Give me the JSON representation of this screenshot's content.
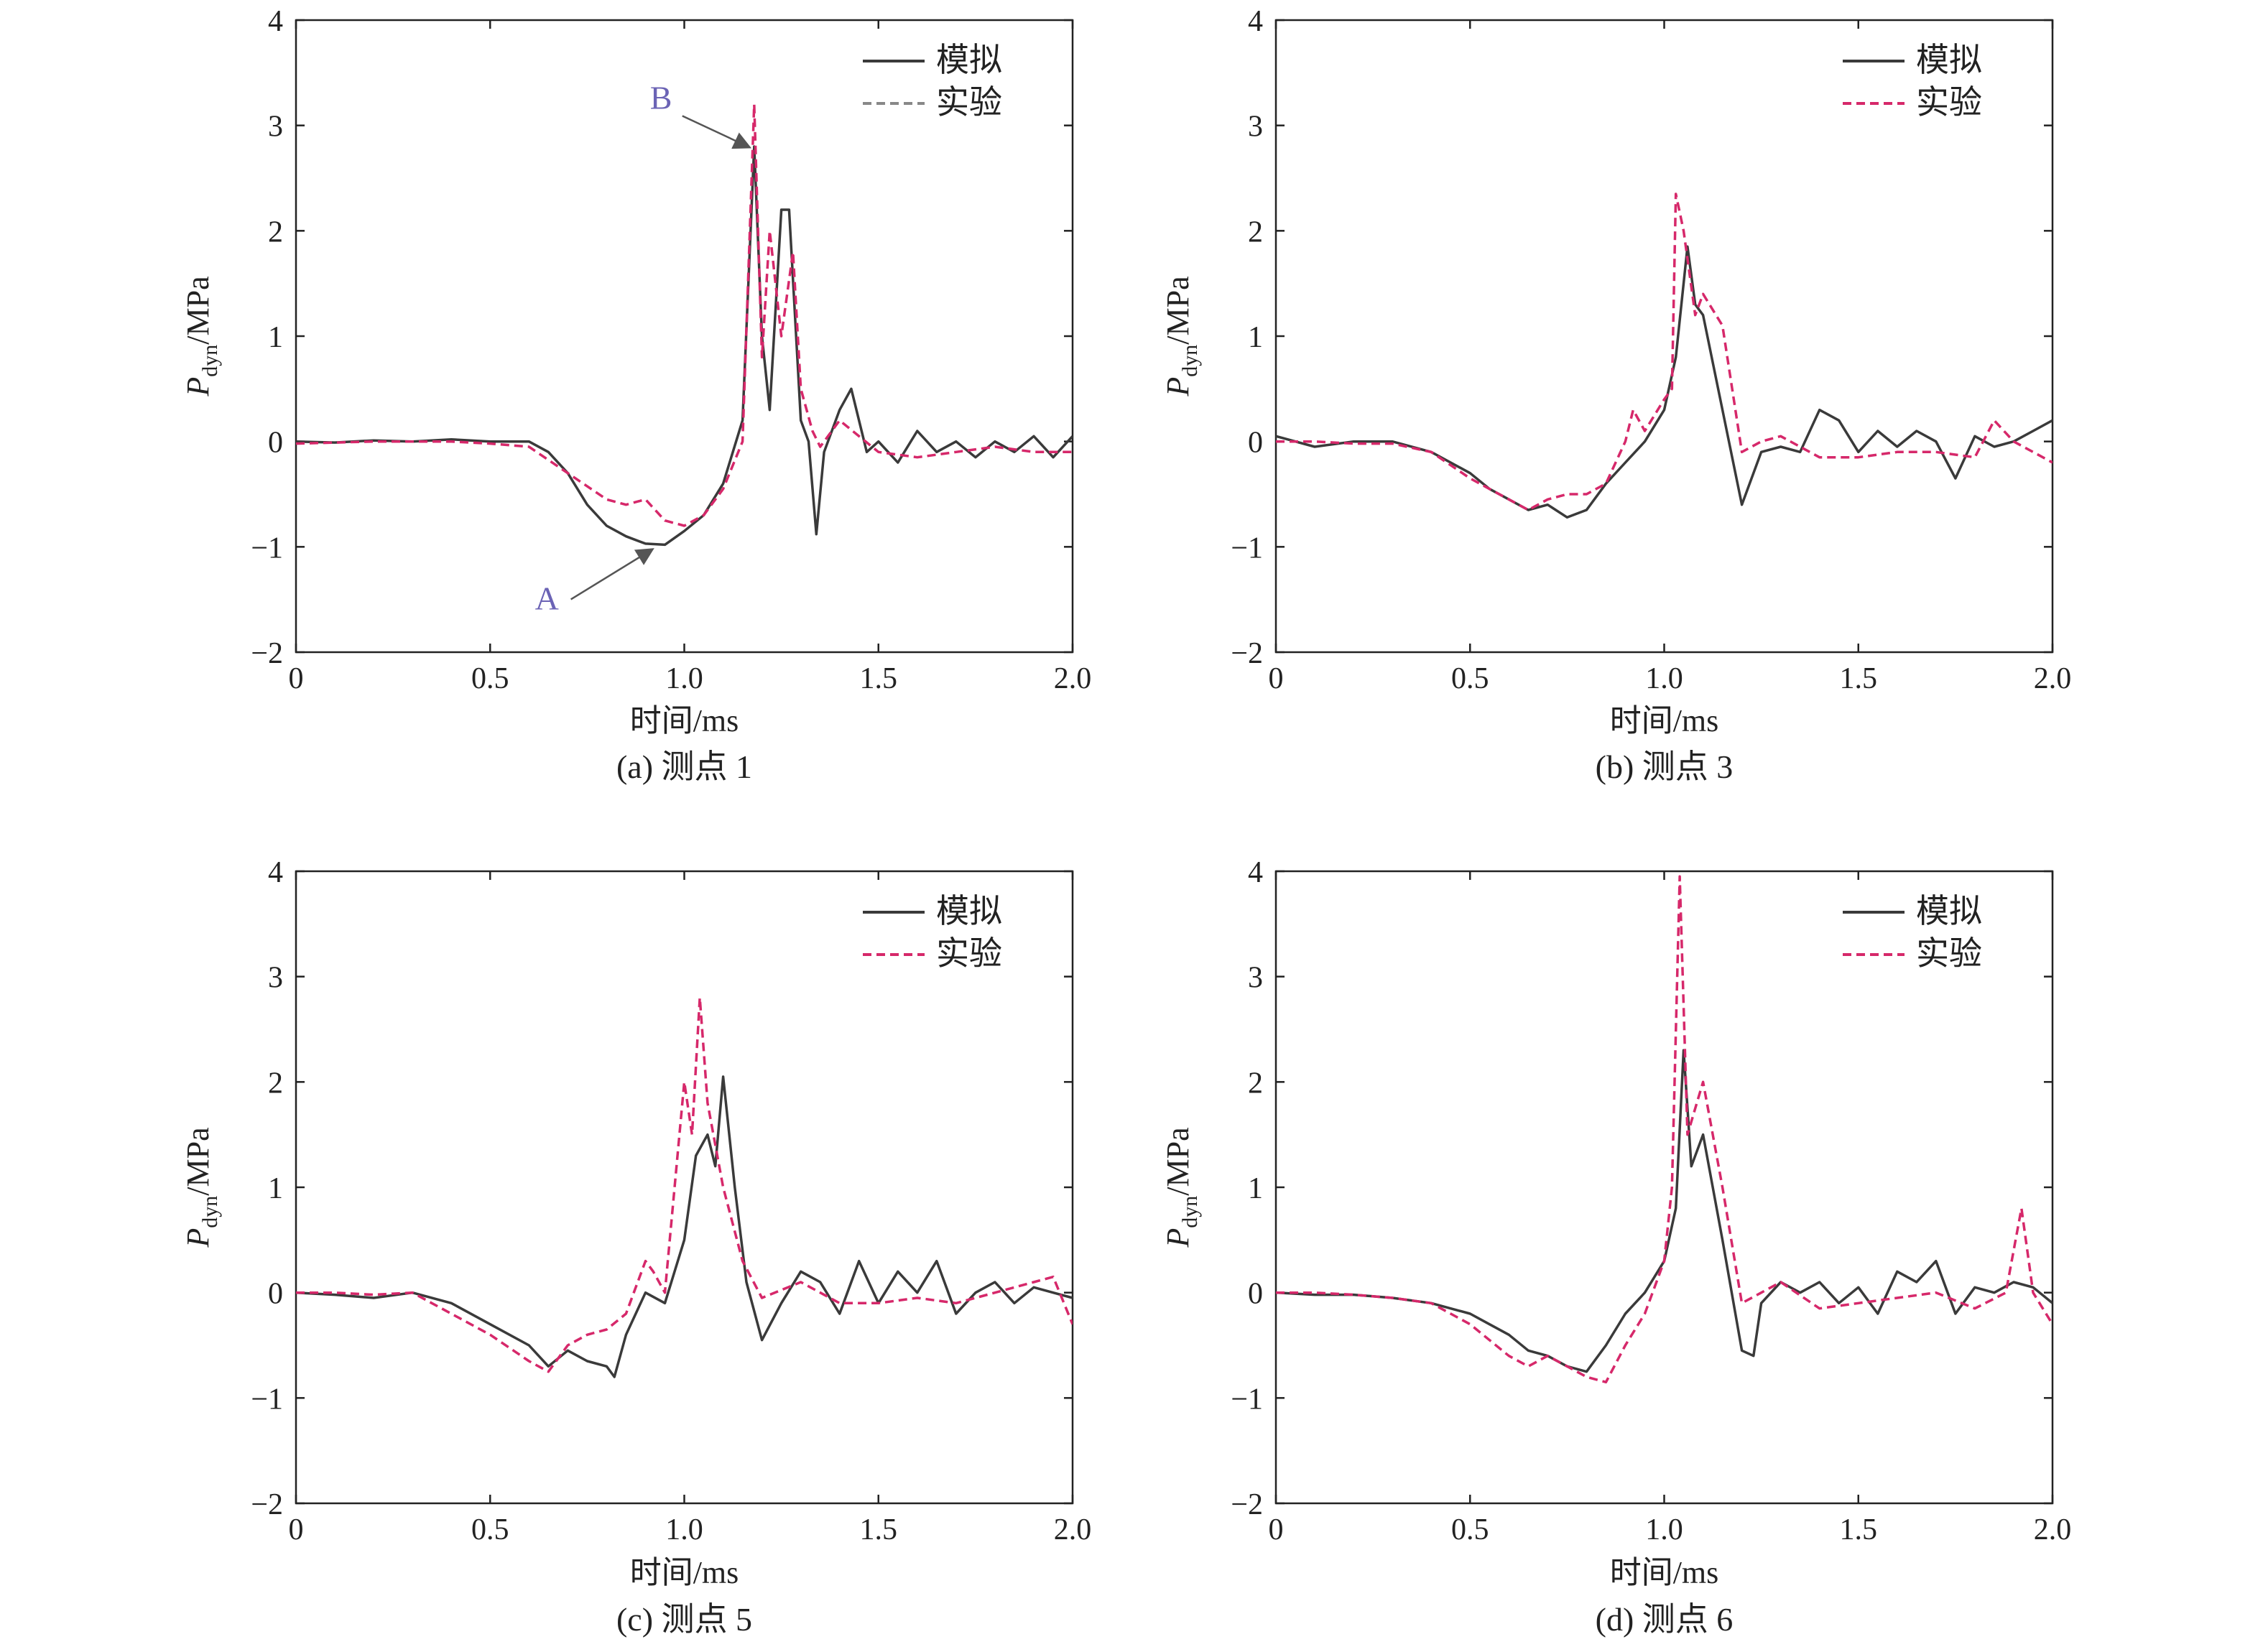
{
  "figure": {
    "colors": {
      "sim": "#3a3a3a",
      "exp": "#d6286a",
      "annotation": "#6b63b5"
    }
  },
  "chart_data": [
    {
      "type": "line",
      "caption": "(a) 测点 1",
      "xlabel": "时间/ms",
      "ylabel": {
        "main": "P",
        "sub": "dyn",
        "rest": "/MPa"
      },
      "xlim": [
        0,
        2.0
      ],
      "ylim": [
        -2,
        4
      ],
      "xticks": [
        "0",
        "0.5",
        "1.0",
        "1.5",
        "2.0"
      ],
      "yticks": [
        "−2",
        "−1",
        "0",
        "1",
        "2",
        "3",
        "4"
      ],
      "legend": {
        "position": "top-right",
        "sim_label": "模拟",
        "exp_label": "实验"
      },
      "annotations": [
        {
          "label": "A",
          "x": 0.93,
          "y": -0.98
        },
        {
          "label": "B",
          "x": 1.18,
          "y": 2.75
        }
      ],
      "series": [
        {
          "name": "模拟",
          "style": "solid",
          "x": [
            0,
            0.1,
            0.2,
            0.3,
            0.4,
            0.5,
            0.6,
            0.65,
            0.7,
            0.75,
            0.8,
            0.85,
            0.9,
            0.95,
            1.0,
            1.05,
            1.1,
            1.15,
            1.18,
            1.2,
            1.22,
            1.25,
            1.27,
            1.3,
            1.32,
            1.34,
            1.36,
            1.4,
            1.43,
            1.47,
            1.5,
            1.55,
            1.6,
            1.65,
            1.7,
            1.75,
            1.8,
            1.85,
            1.9,
            1.95,
            2.0
          ],
          "y": [
            0,
            -0.01,
            0.01,
            0,
            0.02,
            0,
            0,
            -0.1,
            -0.3,
            -0.6,
            -0.8,
            -0.9,
            -0.97,
            -0.98,
            -0.85,
            -0.7,
            -0.4,
            0.2,
            2.8,
            1.0,
            0.3,
            2.2,
            2.2,
            0.2,
            0.0,
            -0.88,
            -0.1,
            0.3,
            0.5,
            -0.1,
            0.0,
            -0.2,
            0.1,
            -0.1,
            0.0,
            -0.15,
            0.0,
            -0.1,
            0.05,
            -0.15,
            0.05
          ]
        },
        {
          "name": "实验",
          "style": "dashed",
          "x": [
            0,
            0.2,
            0.4,
            0.5,
            0.6,
            0.7,
            0.8,
            0.85,
            0.9,
            0.95,
            1.0,
            1.05,
            1.1,
            1.15,
            1.18,
            1.2,
            1.22,
            1.25,
            1.28,
            1.3,
            1.33,
            1.35,
            1.4,
            1.5,
            1.6,
            1.7,
            1.8,
            1.9,
            2.0
          ],
          "y": [
            -0.02,
            0,
            0,
            -0.02,
            -0.05,
            -0.3,
            -0.55,
            -0.6,
            -0.55,
            -0.75,
            -0.8,
            -0.7,
            -0.45,
            0.0,
            3.2,
            0.8,
            2.0,
            1.0,
            1.8,
            0.5,
            0.1,
            -0.05,
            0.2,
            -0.1,
            -0.15,
            -0.1,
            -0.05,
            -0.1,
            -0.1
          ]
        }
      ]
    },
    {
      "type": "line",
      "caption": "(b) 测点 3",
      "xlabel": "时间/ms",
      "ylabel": {
        "main": "P",
        "sub": "dyn",
        "rest": "/MPa"
      },
      "xlim": [
        0,
        2.0
      ],
      "ylim": [
        -2,
        4
      ],
      "xticks": [
        "0",
        "0.5",
        "1.0",
        "1.5",
        "2.0"
      ],
      "yticks": [
        "−2",
        "−1",
        "0",
        "1",
        "2",
        "3",
        "4"
      ],
      "legend": {
        "position": "top-right",
        "sim_label": "模拟",
        "exp_label": "实验"
      },
      "series": [
        {
          "name": "模拟",
          "style": "solid",
          "x": [
            0,
            0.1,
            0.2,
            0.3,
            0.4,
            0.5,
            0.55,
            0.6,
            0.65,
            0.7,
            0.75,
            0.8,
            0.85,
            0.9,
            0.95,
            1.0,
            1.03,
            1.06,
            1.08,
            1.1,
            1.15,
            1.2,
            1.25,
            1.3,
            1.35,
            1.4,
            1.45,
            1.5,
            1.55,
            1.6,
            1.65,
            1.7,
            1.75,
            1.8,
            1.85,
            1.9,
            1.95,
            2.0
          ],
          "y": [
            0.05,
            -0.05,
            0,
            0,
            -0.1,
            -0.3,
            -0.45,
            -0.55,
            -0.65,
            -0.6,
            -0.72,
            -0.65,
            -0.4,
            -0.2,
            0.0,
            0.3,
            0.8,
            1.85,
            1.3,
            1.2,
            0.3,
            -0.6,
            -0.1,
            -0.05,
            -0.1,
            0.3,
            0.2,
            -0.1,
            0.1,
            -0.05,
            0.1,
            0.0,
            -0.35,
            0.05,
            -0.05,
            0.0,
            0.1,
            0.2
          ]
        },
        {
          "name": "实验",
          "style": "dashed",
          "x": [
            0,
            0.1,
            0.2,
            0.3,
            0.4,
            0.5,
            0.6,
            0.65,
            0.7,
            0.75,
            0.8,
            0.85,
            0.9,
            0.92,
            0.95,
            1.0,
            1.02,
            1.03,
            1.05,
            1.08,
            1.1,
            1.15,
            1.2,
            1.25,
            1.3,
            1.4,
            1.5,
            1.6,
            1.7,
            1.8,
            1.85,
            1.9,
            1.95,
            2.0
          ],
          "y": [
            0,
            0,
            -0.02,
            -0.02,
            -0.1,
            -0.35,
            -0.55,
            -0.65,
            -0.55,
            -0.5,
            -0.5,
            -0.4,
            0.0,
            0.3,
            0.1,
            0.4,
            0.5,
            2.35,
            2.0,
            1.2,
            1.4,
            1.1,
            -0.1,
            0.0,
            0.05,
            -0.15,
            -0.15,
            -0.1,
            -0.1,
            -0.15,
            0.2,
            0.0,
            -0.1,
            -0.2
          ]
        }
      ]
    },
    {
      "type": "line",
      "caption": "(c) 测点 5",
      "xlabel": "时间/ms",
      "ylabel": {
        "main": "P",
        "sub": "dyn",
        "rest": "/MPa"
      },
      "xlim": [
        0,
        2.0
      ],
      "ylim": [
        -2,
        4
      ],
      "xticks": [
        "0",
        "0.5",
        "1.0",
        "1.5",
        "2.0"
      ],
      "yticks": [
        "−2",
        "−1",
        "0",
        "1",
        "2",
        "3",
        "4"
      ],
      "legend": {
        "position": "top-right",
        "sim_label": "模拟",
        "exp_label": "实验"
      },
      "series": [
        {
          "name": "模拟",
          "style": "solid",
          "x": [
            0,
            0.1,
            0.2,
            0.3,
            0.4,
            0.5,
            0.6,
            0.65,
            0.7,
            0.75,
            0.8,
            0.82,
            0.85,
            0.9,
            0.95,
            1.0,
            1.03,
            1.06,
            1.08,
            1.1,
            1.13,
            1.16,
            1.2,
            1.25,
            1.3,
            1.35,
            1.4,
            1.45,
            1.5,
            1.55,
            1.6,
            1.65,
            1.7,
            1.75,
            1.8,
            1.85,
            1.9,
            1.95,
            2.0
          ],
          "y": [
            0,
            -0.02,
            -0.05,
            0.0,
            -0.1,
            -0.3,
            -0.5,
            -0.7,
            -0.55,
            -0.65,
            -0.7,
            -0.8,
            -0.4,
            0.0,
            -0.1,
            0.5,
            1.3,
            1.5,
            1.2,
            2.05,
            1.0,
            0.1,
            -0.45,
            -0.1,
            0.2,
            0.1,
            -0.2,
            0.3,
            -0.1,
            0.2,
            0.0,
            0.3,
            -0.2,
            0.0,
            0.1,
            -0.1,
            0.05,
            0.0,
            -0.05
          ]
        },
        {
          "name": "实验",
          "style": "dashed",
          "x": [
            0,
            0.1,
            0.2,
            0.3,
            0.4,
            0.5,
            0.6,
            0.65,
            0.7,
            0.75,
            0.8,
            0.85,
            0.9,
            0.92,
            0.95,
            1.0,
            1.02,
            1.04,
            1.06,
            1.1,
            1.15,
            1.2,
            1.3,
            1.4,
            1.5,
            1.6,
            1.7,
            1.8,
            1.9,
            1.95,
            2.0
          ],
          "y": [
            0,
            0,
            -0.02,
            0,
            -0.2,
            -0.4,
            -0.65,
            -0.75,
            -0.5,
            -0.4,
            -0.35,
            -0.2,
            0.3,
            0.2,
            0.0,
            2.0,
            1.5,
            2.8,
            1.8,
            1.0,
            0.3,
            -0.05,
            0.1,
            -0.1,
            -0.1,
            -0.05,
            -0.1,
            0.0,
            0.1,
            0.15,
            -0.3
          ]
        }
      ]
    },
    {
      "type": "line",
      "caption": "(d) 测点 6",
      "xlabel": "时间/ms",
      "ylabel": {
        "main": "P",
        "sub": "dyn",
        "rest": "/MPa"
      },
      "xlim": [
        0,
        2.0
      ],
      "ylim": [
        -2,
        4
      ],
      "xticks": [
        "0",
        "0.5",
        "1.0",
        "1.5",
        "2.0"
      ],
      "yticks": [
        "−2",
        "−1",
        "0",
        "1",
        "2",
        "3",
        "4"
      ],
      "legend": {
        "position": "top-right",
        "sim_label": "模拟",
        "exp_label": "实验"
      },
      "series": [
        {
          "name": "模拟",
          "style": "solid",
          "x": [
            0,
            0.1,
            0.2,
            0.3,
            0.4,
            0.5,
            0.55,
            0.6,
            0.65,
            0.7,
            0.75,
            0.8,
            0.85,
            0.9,
            0.95,
            1.0,
            1.03,
            1.05,
            1.07,
            1.1,
            1.15,
            1.2,
            1.23,
            1.25,
            1.3,
            1.35,
            1.4,
            1.45,
            1.5,
            1.55,
            1.6,
            1.65,
            1.7,
            1.75,
            1.8,
            1.85,
            1.9,
            1.95,
            2.0
          ],
          "y": [
            0,
            -0.02,
            -0.02,
            -0.05,
            -0.1,
            -0.2,
            -0.3,
            -0.4,
            -0.55,
            -0.6,
            -0.7,
            -0.75,
            -0.5,
            -0.2,
            0.0,
            0.3,
            0.8,
            2.3,
            1.2,
            1.5,
            0.5,
            -0.55,
            -0.6,
            -0.1,
            0.1,
            0.0,
            0.1,
            -0.1,
            0.05,
            -0.2,
            0.2,
            0.1,
            0.3,
            -0.2,
            0.05,
            0.0,
            0.1,
            0.05,
            -0.1
          ]
        },
        {
          "name": "实验",
          "style": "dashed",
          "x": [
            0,
            0.1,
            0.2,
            0.3,
            0.4,
            0.5,
            0.6,
            0.65,
            0.7,
            0.75,
            0.8,
            0.85,
            0.9,
            0.95,
            1.0,
            1.02,
            1.04,
            1.06,
            1.1,
            1.15,
            1.2,
            1.25,
            1.3,
            1.4,
            1.5,
            1.6,
            1.7,
            1.8,
            1.88,
            1.9,
            1.92,
            1.95,
            2.0
          ],
          "y": [
            0,
            0,
            -0.02,
            -0.05,
            -0.1,
            -0.3,
            -0.6,
            -0.7,
            -0.6,
            -0.7,
            -0.8,
            -0.85,
            -0.5,
            -0.2,
            0.3,
            1.0,
            3.95,
            1.5,
            2.0,
            1.0,
            -0.1,
            0.0,
            0.1,
            -0.15,
            -0.1,
            -0.05,
            0.0,
            -0.15,
            0.0,
            0.4,
            0.8,
            0.0,
            -0.3
          ]
        }
      ]
    }
  ]
}
